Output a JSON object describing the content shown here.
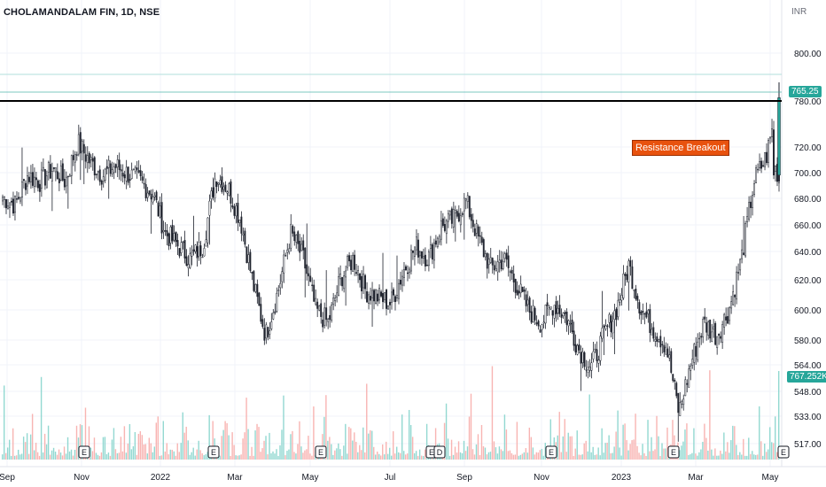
{
  "header": {
    "symbol_title": "CHOLAMANDALAM FIN, 1D, NSE",
    "currency": "INR"
  },
  "annotations": {
    "breakout_label": "Resistance Breakout",
    "last_price": "765.25",
    "last_volume": "767.252K"
  },
  "colors": {
    "up": "#26a69a",
    "down": "#ef5350",
    "candle_up_body": "#ffffff",
    "candle_down_body": "#1e222d",
    "resistance_line": "#000000",
    "breakout_bg": "#e8520e",
    "price_badge": "#26a69a"
  },
  "chart_data": {
    "type": "candlestick",
    "timeframe": "1D",
    "exchange": "NSE",
    "price_axis_ticks": [
      "800.00",
      "780.00",
      "720.00",
      "700.00",
      "680.00",
      "660.00",
      "640.00",
      "620.00",
      "600.00",
      "580.00",
      "564.00",
      "548.00",
      "533.00",
      "517.00"
    ],
    "time_axis_ticks": [
      "Sep",
      "Nov",
      "2022",
      "Mar",
      "May",
      "Jul",
      "Sep",
      "Nov",
      "2023",
      "Mar",
      "May"
    ],
    "resistance_level": 772,
    "last_close": 765.25,
    "last_volume_label": "767.252K",
    "ylim": [
      560,
      810
    ],
    "event_markers": [
      "E",
      "E",
      "E",
      "E",
      "D",
      "E",
      "E",
      "E",
      "E"
    ],
    "price_path": [
      {
        "t": "Sep",
        "p": 688
      },
      {
        "t": "",
        "p": 682
      },
      {
        "t": "",
        "p": 705
      },
      {
        "t": "",
        "p": 700
      },
      {
        "t": "",
        "p": 710
      },
      {
        "t": "",
        "p": 700
      },
      {
        "t": "",
        "p": 730
      },
      {
        "t": "",
        "p": 715
      },
      {
        "t": "Nov",
        "p": 705
      },
      {
        "t": "",
        "p": 712
      },
      {
        "t": "",
        "p": 706
      },
      {
        "t": "",
        "p": 700
      },
      {
        "t": "",
        "p": 690
      },
      {
        "t": "",
        "p": 660
      },
      {
        "t": "2022",
        "p": 650
      },
      {
        "t": "",
        "p": 640
      },
      {
        "t": "",
        "p": 650
      },
      {
        "t": "",
        "p": 705
      },
      {
        "t": "",
        "p": 695
      },
      {
        "t": "",
        "p": 670
      },
      {
        "t": "Mar",
        "p": 620
      },
      {
        "t": "",
        "p": 580
      },
      {
        "t": "",
        "p": 615
      },
      {
        "t": "",
        "p": 660
      },
      {
        "t": "",
        "p": 640
      },
      {
        "t": "May",
        "p": 600
      },
      {
        "t": "",
        "p": 590
      },
      {
        "t": "",
        "p": 625
      },
      {
        "t": "",
        "p": 640
      },
      {
        "t": "",
        "p": 615
      },
      {
        "t": "",
        "p": 610
      },
      {
        "t": "Jul",
        "p": 605
      },
      {
        "t": "",
        "p": 630
      },
      {
        "t": "",
        "p": 650
      },
      {
        "t": "",
        "p": 640
      },
      {
        "t": "",
        "p": 665
      },
      {
        "t": "",
        "p": 670
      },
      {
        "t": "Sep",
        "p": 685
      },
      {
        "t": "",
        "p": 655
      },
      {
        "t": "",
        "p": 632
      },
      {
        "t": "",
        "p": 640
      },
      {
        "t": "",
        "p": 620
      },
      {
        "t": "Nov",
        "p": 600
      },
      {
        "t": "",
        "p": 590
      },
      {
        "t": "",
        "p": 605
      },
      {
        "t": "",
        "p": 595
      },
      {
        "t": "",
        "p": 570
      },
      {
        "t": "2023",
        "p": 555
      },
      {
        "t": "",
        "p": 580
      },
      {
        "t": "",
        "p": 600
      },
      {
        "t": "",
        "p": 635
      },
      {
        "t": "",
        "p": 600
      },
      {
        "t": "",
        "p": 585
      },
      {
        "t": "Mar",
        "p": 572
      },
      {
        "t": "",
        "p": 520
      },
      {
        "t": "",
        "p": 560
      },
      {
        "t": "",
        "p": 590
      },
      {
        "t": "",
        "p": 580
      },
      {
        "t": "",
        "p": 600
      },
      {
        "t": "",
        "p": 640
      },
      {
        "t": "",
        "p": 700
      },
      {
        "t": "May",
        "p": 720
      },
      {
        "t": "",
        "p": 765
      }
    ]
  }
}
